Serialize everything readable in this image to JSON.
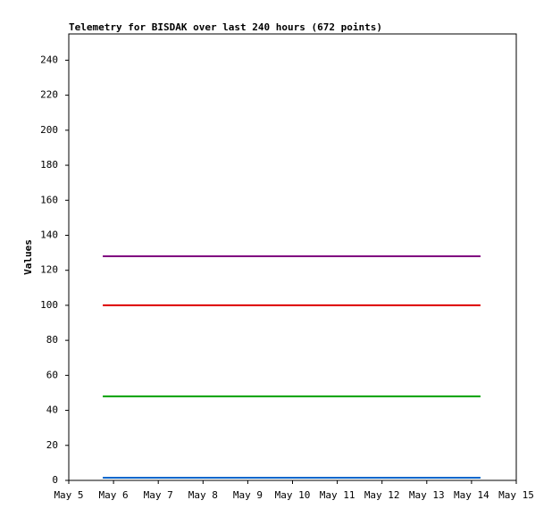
{
  "chart_data": {
    "type": "line",
    "title": "Telemetry for BISDAK over last 240 hours (672 points)",
    "y_label": "Values",
    "x": [
      5.76,
      14.2
    ],
    "series": [
      {
        "color": "#800080",
        "values": [
          128,
          128
        ]
      },
      {
        "color": "#dd0000",
        "values": [
          100,
          100
        ]
      },
      {
        "color": "#00a000",
        "values": [
          48,
          48
        ]
      },
      {
        "color": "#0066cc",
        "values": [
          1.5,
          1.5
        ]
      }
    ],
    "xlim": [
      5,
      15
    ],
    "xticks": [
      {
        "value": 5,
        "label": "May 5"
      },
      {
        "value": 6,
        "label": "May 6"
      },
      {
        "value": 7,
        "label": "May 7"
      },
      {
        "value": 8,
        "label": "May 8"
      },
      {
        "value": 9,
        "label": "May 9"
      },
      {
        "value": 10,
        "label": "May 10"
      },
      {
        "value": 11,
        "label": "May 11"
      },
      {
        "value": 12,
        "label": "May 12"
      },
      {
        "value": 13,
        "label": "May 13"
      },
      {
        "value": 14,
        "label": "May 14"
      },
      {
        "value": 15,
        "label": "May 15"
      }
    ],
    "ylim": [
      0,
      255
    ],
    "yticks": [
      0,
      20,
      40,
      60,
      80,
      100,
      120,
      140,
      160,
      180,
      200,
      220,
      240
    ]
  }
}
